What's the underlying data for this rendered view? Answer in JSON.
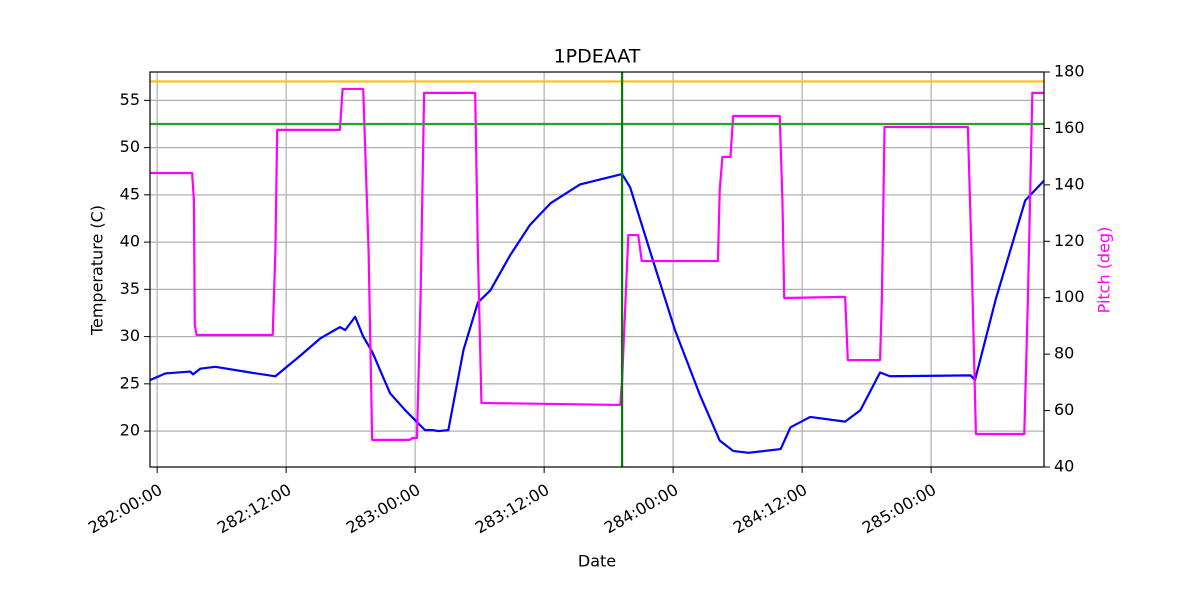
{
  "chart_data": {
    "type": "line",
    "title": "1PDEAAT",
    "x_label": "Date",
    "y_label": "Temperature (C)",
    "y2_label": "Pitch (deg)",
    "xlim": [
      "281:23:20",
      "285:10:30"
    ],
    "xticks": [
      "282:00:00",
      "282:12:00",
      "283:00:00",
      "283:12:00",
      "284:00:00",
      "284:12:00",
      "285:00:00"
    ],
    "ylim": [
      16.2,
      58.0
    ],
    "yticks": [
      20,
      25,
      30,
      35,
      40,
      45,
      50,
      55
    ],
    "y2lim": [
      40,
      180
    ],
    "y2ticks": [
      40,
      60,
      80,
      100,
      120,
      140,
      160,
      180
    ],
    "grid": true,
    "y2_color": "#ff00ff",
    "hlines": [
      {
        "value": 57,
        "color": "#ffc000"
      },
      {
        "value": 52.5,
        "color": "#2ca02c"
      }
    ],
    "vlines": [
      {
        "x": "283:19:15",
        "color": "#008000"
      }
    ],
    "series": [
      {
        "color": "#0000ff",
        "axis": "y",
        "x": [
          "281:23:20",
          "282:00:45",
          "282:03:05",
          "282:03:20",
          "282:04:00",
          "282:05:25",
          "282:08:40",
          "282:11:00",
          "282:13:20",
          "282:15:10",
          "282:17:00",
          "282:17:30",
          "282:18:25",
          "282:19:10",
          "282:20:00",
          "282:21:40",
          "282:23:05",
          "283:00:55",
          "283:01:40",
          "283:02:10",
          "283:03:05",
          "283:04:30",
          "283:05:50",
          "283:07:00",
          "283:08:50",
          "283:10:40",
          "283:12:35",
          "283:15:20",
          "283:19:15",
          "283:20:00",
          "283:21:50",
          "284:00:10",
          "284:02:30",
          "284:04:20",
          "284:05:35",
          "284:07:00",
          "284:10:00",
          "284:10:55",
          "284:12:45",
          "284:16:00",
          "284:17:25",
          "284:19:15",
          "284:20:10",
          "285:03:40",
          "285:04:05",
          "285:06:00",
          "285:08:45",
          "285:10:30"
        ],
        "values": [
          25.4,
          26.1,
          26.3,
          26.0,
          26.6,
          26.8,
          26.2,
          25.8,
          28.0,
          29.8,
          31.0,
          30.7,
          32.1,
          30.0,
          28.4,
          24.0,
          22.2,
          20.1,
          20.1,
          20.0,
          20.1,
          28.6,
          33.6,
          34.9,
          38.6,
          41.8,
          44.1,
          46.1,
          47.2,
          45.8,
          39.1,
          30.7,
          23.8,
          19.0,
          17.9,
          17.7,
          18.1,
          20.4,
          21.5,
          21.0,
          22.2,
          26.2,
          25.8,
          25.9,
          25.4,
          33.9,
          44.4,
          46.5
        ]
      },
      {
        "color": "#ff00ff",
        "axis": "y2",
        "x": [
          "281:23:20",
          "282:03:15",
          "282:03:25",
          "282:03:30",
          "282:03:40",
          "282:10:45",
          "282:11:00",
          "282:11:10",
          "282:17:00",
          "282:17:15",
          "282:19:10",
          "282:19:40",
          "282:20:00",
          "282:23:30",
          "282:23:45",
          "283:00:10",
          "283:00:30",
          "283:00:50",
          "283:05:35",
          "283:05:50",
          "283:06:10",
          "283:19:05",
          "283:19:15",
          "283:19:50",
          "283:20:45",
          "283:21:05",
          "284:04:10",
          "284:04:20",
          "284:04:35",
          "284:05:20",
          "284:05:35",
          "284:09:55",
          "284:10:10",
          "284:10:20",
          "284:16:00",
          "284:16:15",
          "284:19:15",
          "284:19:25",
          "284:19:40",
          "285:03:25",
          "285:03:45",
          "285:04:10",
          "285:08:40",
          "285:09:00",
          "285:09:25",
          "285:10:30"
        ],
        "values": [
          144.2,
          144.2,
          134.6,
          90.3,
          86.8,
          86.8,
          116.9,
          159.5,
          159.5,
          174.0,
          174.0,
          116.9,
          49.6,
          49.6,
          50.3,
          50.3,
          99.2,
          172.6,
          172.6,
          116.9,
          62.7,
          62.0,
          70.8,
          122.2,
          122.2,
          113.0,
          113.0,
          138.2,
          149.9,
          149.9,
          164.4,
          164.4,
          134.6,
          99.9,
          100.3,
          77.9,
          77.9,
          99.2,
          160.5,
          160.5,
          116.9,
          51.7,
          51.7,
          99.2,
          172.6,
          172.6
        ]
      }
    ]
  }
}
